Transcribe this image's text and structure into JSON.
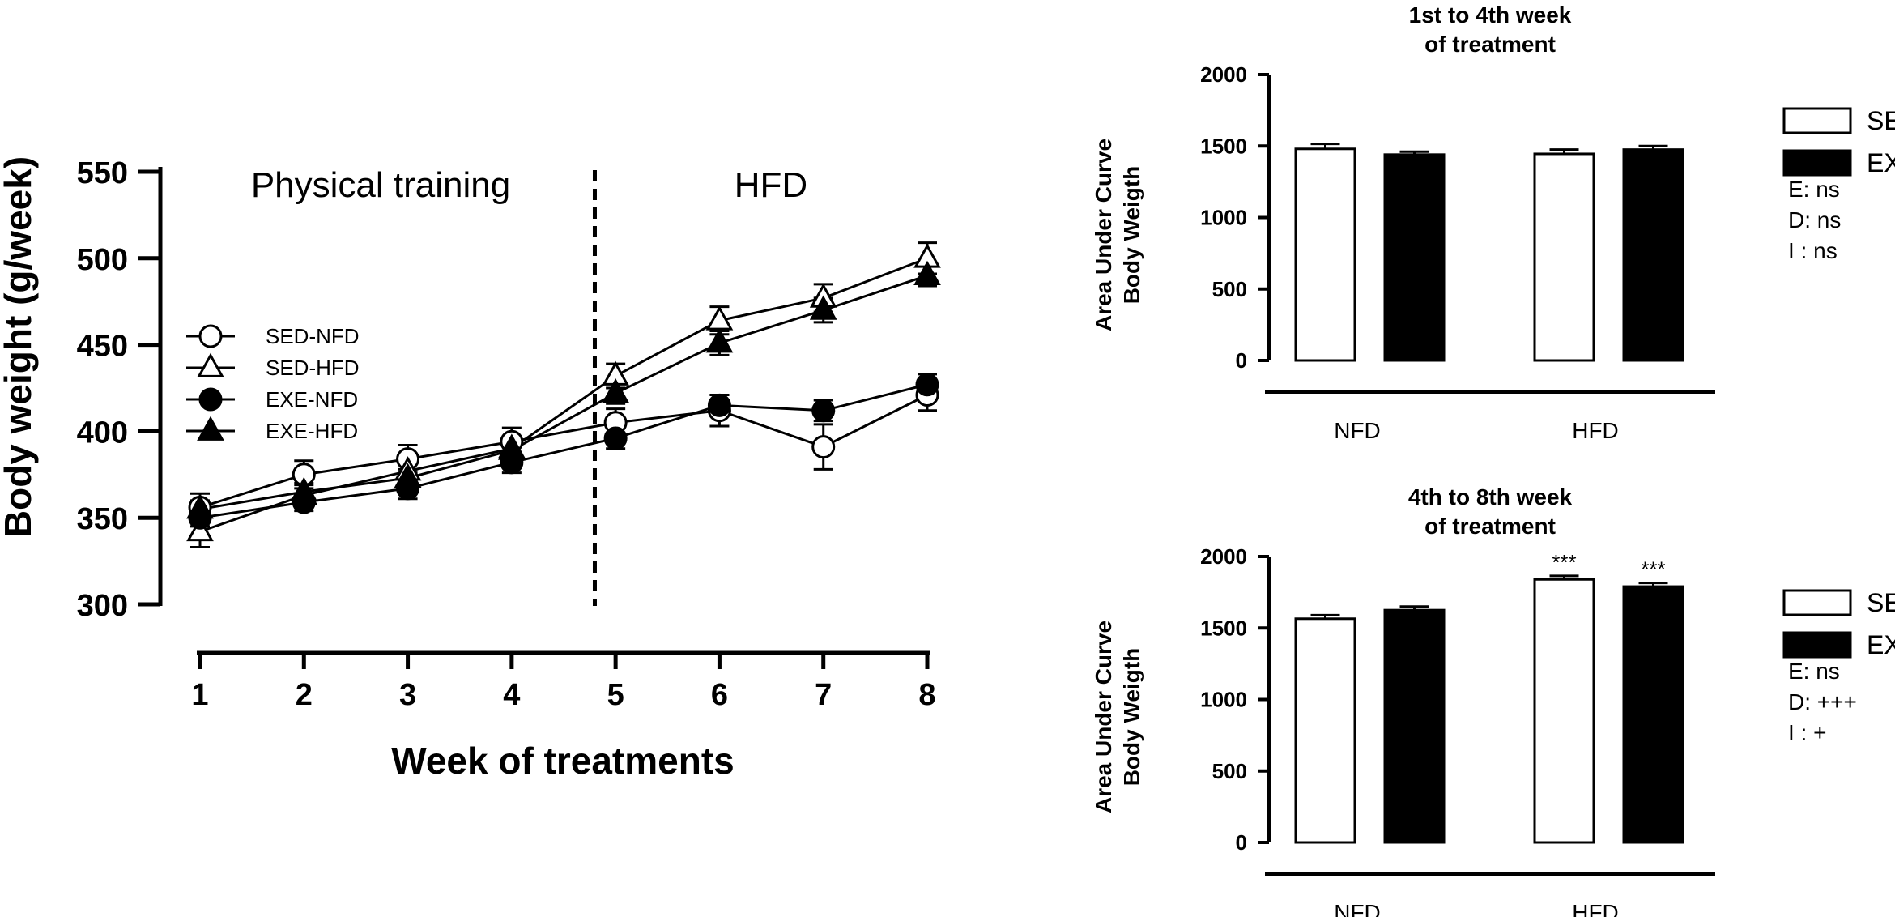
{
  "chart_data": [
    {
      "type": "line",
      "title": "",
      "xlabel": "Week of treatments",
      "ylabel": "Body weight (g/week)",
      "x": [
        1,
        2,
        3,
        4,
        5,
        6,
        7,
        8
      ],
      "xlim": [
        1,
        8
      ],
      "ylim": [
        300,
        550
      ],
      "yticks": [
        300,
        350,
        400,
        450,
        500,
        550
      ],
      "phase_divider_x": 4.8,
      "annotations": {
        "left_phase": "Physical training",
        "right_phase": "HFD"
      },
      "series": [
        {
          "name": "SED-NFD",
          "marker": "circle",
          "fill": "#ffffff",
          "values": [
            356,
            375,
            384,
            394,
            405,
            412,
            391,
            421
          ],
          "errors": [
            8,
            8,
            8,
            8,
            8,
            9,
            13,
            9
          ]
        },
        {
          "name": "SED-HFD",
          "marker": "triangle",
          "fill": "#ffffff",
          "values": [
            342,
            363,
            377,
            390,
            432,
            464,
            477,
            500
          ],
          "errors": [
            9,
            6,
            6,
            6,
            7,
            8,
            8,
            9
          ]
        },
        {
          "name": "EXE-NFD",
          "marker": "circle",
          "fill": "#000000",
          "values": [
            350,
            359,
            367,
            382,
            396,
            415,
            412,
            427
          ],
          "errors": [
            5,
            5,
            6,
            6,
            6,
            6,
            6,
            6
          ]
        },
        {
          "name": "EXE-HFD",
          "marker": "triangle",
          "fill": "#000000",
          "values": [
            355,
            365,
            373,
            389,
            422,
            451,
            470,
            490
          ],
          "errors": [
            5,
            5,
            5,
            6,
            6,
            7,
            7,
            6
          ]
        }
      ]
    },
    {
      "type": "bar",
      "title": "1st to 4th week\nof treatment",
      "title_lines": [
        "1st to 4th week",
        "of treatment"
      ],
      "ylabel_lines": [
        "Area Under Curve",
        "Body Weigth"
      ],
      "categories": [
        "NFD",
        "HFD"
      ],
      "ylim": [
        0,
        2000
      ],
      "yticks": [
        0,
        500,
        1000,
        1500,
        2000
      ],
      "series": [
        {
          "name": "SED",
          "fill": "#ffffff",
          "values": [
            1480,
            1445
          ],
          "errors": [
            35,
            30
          ]
        },
        {
          "name": "EXE",
          "fill": "#000000",
          "values": [
            1440,
            1475
          ],
          "errors": [
            20,
            25
          ]
        }
      ],
      "sig_labels": [
        [
          "",
          ""
        ],
        [
          "",
          ""
        ]
      ],
      "stats": [
        "E: ns",
        "D: ns",
        "I : ns"
      ]
    },
    {
      "type": "bar",
      "title": "4th to 8th week\nof treatment",
      "title_lines": [
        "4th to 8th week",
        "of treatment"
      ],
      "ylabel_lines": [
        "Area Under Curve",
        "Body Weigth"
      ],
      "categories": [
        "NFD",
        "HFD"
      ],
      "ylim": [
        0,
        2000
      ],
      "yticks": [
        0,
        500,
        1000,
        1500,
        2000
      ],
      "series": [
        {
          "name": "SED",
          "fill": "#ffffff",
          "values": [
            1565,
            1840
          ],
          "errors": [
            25,
            25
          ]
        },
        {
          "name": "EXE",
          "fill": "#000000",
          "values": [
            1625,
            1790
          ],
          "errors": [
            25,
            25
          ]
        }
      ],
      "sig_labels": [
        [
          "",
          "***"
        ],
        [
          "",
          "***"
        ]
      ],
      "stats": [
        "E: ns",
        "D: +++",
        "I : +"
      ]
    }
  ]
}
